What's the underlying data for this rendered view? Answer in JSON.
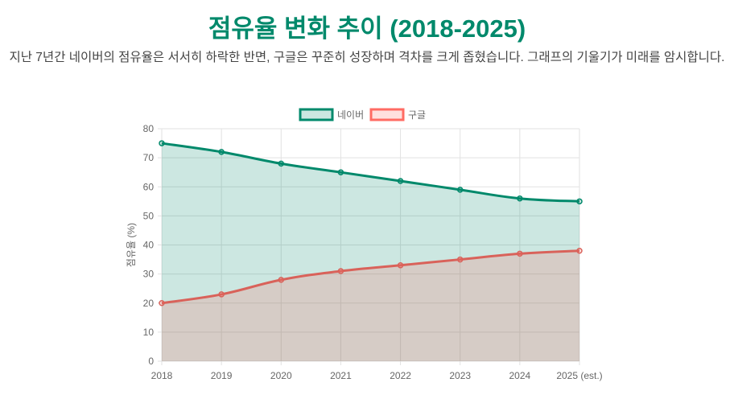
{
  "header": {
    "title": "점유율 변화 추이 (2018-2025)",
    "description": "지난 7년간 네이버의 점유율은 서서히 하락한 반면, 구글은 꾸준히 성장하며 격차를 크게 좁혔습니다. 그래프의 기울기가 미래를 암시합니다."
  },
  "chart_data": {
    "type": "area",
    "title": "점유율 변화 추이 (2018-2025)",
    "xlabel": "",
    "ylabel": "점유율 (%)",
    "ylim": [
      0,
      80
    ],
    "yticks": [
      "0",
      "10",
      "20",
      "30",
      "40",
      "50",
      "60",
      "70",
      "80"
    ],
    "categories": [
      "2018",
      "2019",
      "2020",
      "2021",
      "2022",
      "2023",
      "2024",
      "2025 (est.)"
    ],
    "legend_position": "top",
    "grid": true,
    "series": [
      {
        "name": "네이버",
        "values": [
          75,
          72,
          68,
          65,
          62,
          59,
          56,
          55
        ],
        "color": "#00896b",
        "fill": "rgba(0,137,107,0.2)"
      },
      {
        "name": "구글",
        "values": [
          20,
          23,
          28,
          31,
          33,
          35,
          37,
          38
        ],
        "color": "#d9625a",
        "fill": "rgba(255,99,90,0.2)",
        "legend_color": "#ff6b63"
      }
    ]
  }
}
